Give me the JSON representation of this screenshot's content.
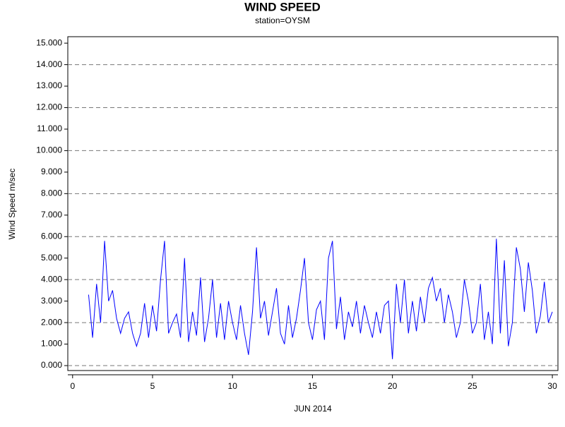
{
  "chart_data": {
    "type": "line",
    "title": "WIND SPEED",
    "subtitle": "station=OYSM",
    "x_label": "JUN 2014",
    "y_label": "Wind Speed m/sec",
    "xlim": [
      -0.3,
      30.35
    ],
    "xticks": [
      0,
      5,
      10,
      15,
      20,
      25,
      30
    ],
    "ylim": [
      -0.23,
      15.3
    ],
    "yticks": [
      {
        "value": 0,
        "label": "0.000"
      },
      {
        "value": 1,
        "label": "1.000"
      },
      {
        "value": 2,
        "label": "2.000"
      },
      {
        "value": 3,
        "label": "3.000"
      },
      {
        "value": 4,
        "label": "4.000"
      },
      {
        "value": 5,
        "label": "5.000"
      },
      {
        "value": 6,
        "label": "6.000"
      },
      {
        "value": 7,
        "label": "7.000"
      },
      {
        "value": 8,
        "label": "8.000"
      },
      {
        "value": 9,
        "label": "9.000"
      },
      {
        "value": 10,
        "label": "10.000"
      },
      {
        "value": 11,
        "label": "11.000"
      },
      {
        "value": 12,
        "label": "12.000"
      },
      {
        "value": 13,
        "label": "13.000"
      },
      {
        "value": 14,
        "label": "14.000"
      },
      {
        "value": 15,
        "label": "15.000"
      }
    ],
    "grid": true,
    "series": [
      {
        "color": "#0000ff",
        "x": [
          1,
          1.25,
          1.5,
          1.75,
          2,
          2.25,
          2.5,
          2.75,
          3,
          3.25,
          3.5,
          3.75,
          4,
          4.25,
          4.5,
          4.75,
          5,
          5.25,
          5.5,
          5.75,
          6,
          6.25,
          6.5,
          6.75,
          7,
          7.25,
          7.5,
          7.75,
          8,
          8.25,
          8.5,
          8.75,
          9,
          9.25,
          9.5,
          9.75,
          10,
          10.25,
          10.5,
          10.75,
          11,
          11.25,
          11.5,
          11.75,
          12,
          12.25,
          12.5,
          12.75,
          13,
          13.25,
          13.5,
          13.75,
          14,
          14.25,
          14.5,
          14.75,
          15,
          15.25,
          15.5,
          15.75,
          16,
          16.25,
          16.5,
          16.75,
          17,
          17.25,
          17.5,
          17.75,
          18,
          18.25,
          18.5,
          18.75,
          19,
          19.25,
          19.5,
          19.75,
          20,
          20.25,
          20.5,
          20.75,
          21,
          21.25,
          21.5,
          21.75,
          22,
          22.25,
          22.5,
          22.75,
          23,
          23.25,
          23.5,
          23.75,
          24,
          24.25,
          24.5,
          24.75,
          25,
          25.25,
          25.5,
          25.75,
          26,
          26.25,
          26.5,
          26.75,
          27,
          27.25,
          27.5,
          27.75,
          28,
          28.25,
          28.5,
          28.75,
          29,
          29.25,
          29.5,
          29.75,
          30
        ],
        "values": [
          3.3,
          1.3,
          3.8,
          2.0,
          5.8,
          3.0,
          3.5,
          2.2,
          1.5,
          2.2,
          2.5,
          1.5,
          0.9,
          1.5,
          2.9,
          1.3,
          2.8,
          1.6,
          4.0,
          5.8,
          1.5,
          2.0,
          2.4,
          1.3,
          5.0,
          1.1,
          2.5,
          1.4,
          4.1,
          1.1,
          2.2,
          4.0,
          1.3,
          2.9,
          1.2,
          3.0,
          2.0,
          1.2,
          2.8,
          1.5,
          0.5,
          2.5,
          5.5,
          2.2,
          3.0,
          1.4,
          2.5,
          3.6,
          1.5,
          1.0,
          2.8,
          1.3,
          2.2,
          3.5,
          5.0,
          2.0,
          1.2,
          2.6,
          3.0,
          1.2,
          5.0,
          5.8,
          1.7,
          3.2,
          1.2,
          2.5,
          1.8,
          3.0,
          1.5,
          2.8,
          2.0,
          1.3,
          2.5,
          1.5,
          2.8,
          3.0,
          0.3,
          3.8,
          2.0,
          4.0,
          1.5,
          3.0,
          1.6,
          3.2,
          2.0,
          3.6,
          4.1,
          3.0,
          3.6,
          2.0,
          3.3,
          2.5,
          1.3,
          2.0,
          4.0,
          3.0,
          1.5,
          2.0,
          3.8,
          1.2,
          2.5,
          1.0,
          5.9,
          1.5,
          4.9,
          0.9,
          2.0,
          5.5,
          4.5,
          2.5,
          4.8,
          3.5,
          1.5,
          2.3,
          3.9,
          2.0,
          2.5
        ]
      }
    ]
  }
}
